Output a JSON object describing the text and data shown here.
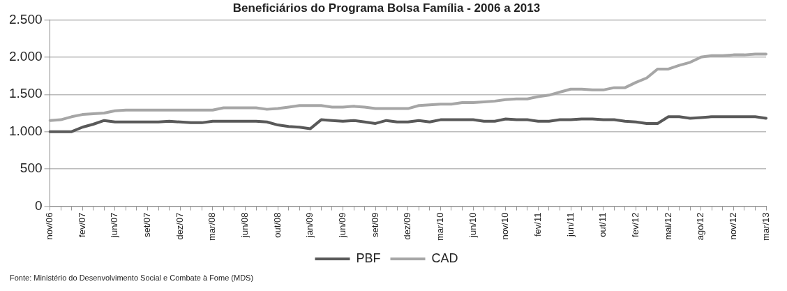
{
  "chart_data": {
    "type": "line",
    "title": "Beneficiários do Programa Bolsa Família - 2006 a 2013",
    "categories": [
      "nov/06",
      null,
      null,
      "fev/07",
      null,
      null,
      "jun/07",
      null,
      null,
      "set/07",
      null,
      null,
      "dez/07",
      null,
      null,
      "mar/08",
      null,
      null,
      "jun/08",
      null,
      null,
      "out/08",
      null,
      null,
      "jan/09",
      null,
      null,
      "jun/09",
      null,
      null,
      "set/09",
      null,
      null,
      "dez/09",
      null,
      null,
      "mar/10",
      null,
      null,
      "jun/10",
      null,
      null,
      "nov/10",
      null,
      null,
      "fev/11",
      null,
      null,
      "jun/11",
      null,
      null,
      "out/11",
      null,
      null,
      "fev/12",
      null,
      null,
      "mai/12",
      null,
      null,
      "ago/12",
      null,
      null,
      "nov/12",
      null,
      null,
      "mar/13"
    ],
    "series": [
      {
        "name": "PBF",
        "color": "#595959",
        "values": [
          1000,
          1000,
          1000,
          1060,
          1100,
          1150,
          1130,
          1130,
          1130,
          1130,
          1130,
          1140,
          1130,
          1120,
          1120,
          1140,
          1140,
          1140,
          1140,
          1140,
          1130,
          1090,
          1070,
          1060,
          1040,
          1160,
          1150,
          1140,
          1150,
          1130,
          1110,
          1150,
          1130,
          1130,
          1150,
          1130,
          1160,
          1160,
          1160,
          1160,
          1140,
          1140,
          1170,
          1160,
          1160,
          1140,
          1140,
          1160,
          1160,
          1170,
          1170,
          1160,
          1160,
          1140,
          1130,
          1110,
          1110,
          1200,
          1200,
          1180,
          1190,
          1200,
          1200,
          1200,
          1200,
          1200,
          1180
        ]
      },
      {
        "name": "CAD",
        "color": "#a6a6a6",
        "values": [
          1150,
          1160,
          1200,
          1230,
          1240,
          1250,
          1280,
          1290,
          1290,
          1290,
          1290,
          1290,
          1290,
          1290,
          1290,
          1290,
          1320,
          1320,
          1320,
          1320,
          1300,
          1310,
          1330,
          1350,
          1350,
          1350,
          1330,
          1330,
          1340,
          1330,
          1310,
          1310,
          1310,
          1310,
          1350,
          1360,
          1370,
          1370,
          1390,
          1390,
          1400,
          1410,
          1430,
          1440,
          1440,
          1470,
          1490,
          1530,
          1570,
          1570,
          1560,
          1560,
          1590,
          1590,
          1660,
          1720,
          1840,
          1840,
          1890,
          1930,
          2000,
          2020,
          2020,
          2030,
          2030,
          2040,
          2040
        ]
      }
    ],
    "ylim": [
      0,
      2500
    ],
    "yticks": [
      0,
      500,
      {
        "value": 1000,
        "label": "1.000"
      },
      {
        "value": 1500,
        "label": "1.500"
      },
      {
        "value": 2000,
        "label": "2.000"
      },
      {
        "value": 2500,
        "label": "2.500"
      }
    ],
    "grid": "y",
    "legend": "bottom",
    "marker": "none",
    "line_style": "solid",
    "annotations": [
      "Fonte: Ministério do Desenvolvimento Social e Combate à Fome (MDS)"
    ]
  }
}
